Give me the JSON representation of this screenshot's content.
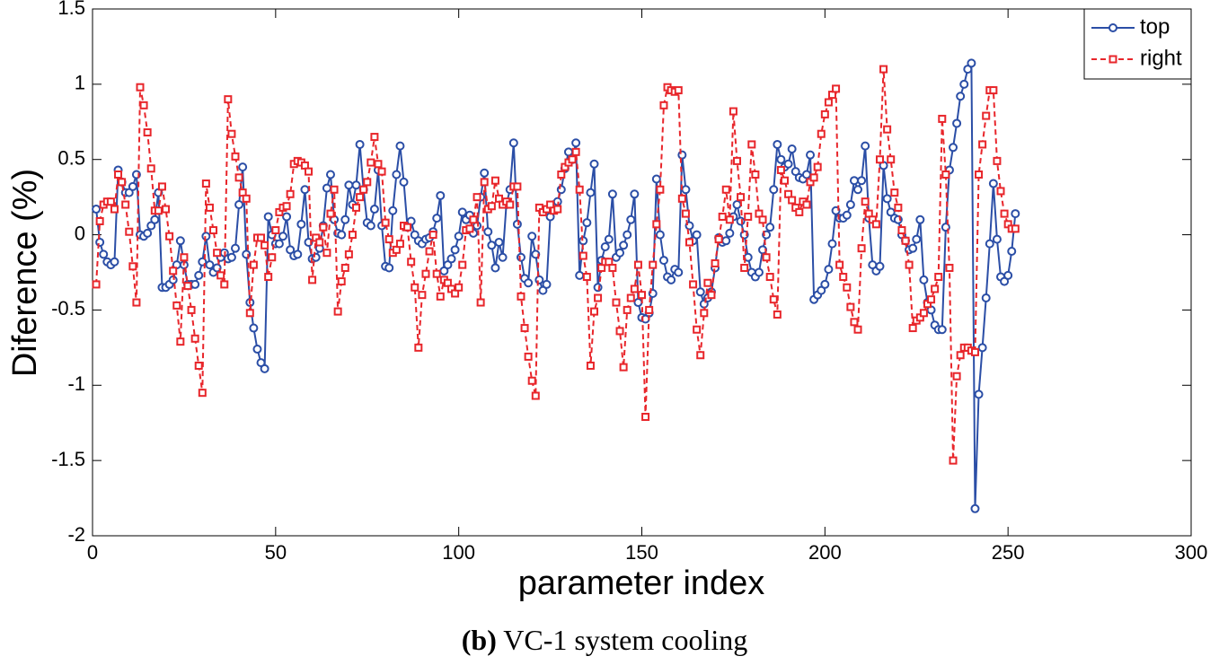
{
  "chart_data": {
    "type": "line",
    "xlabel": "parameter index",
    "ylabel": "Diference (%)",
    "caption": {
      "label": "(b)",
      "text": "VC-1 system cooling"
    },
    "xlim": [
      0,
      300
    ],
    "xticks": [
      0,
      50,
      100,
      150,
      200,
      250,
      300
    ],
    "ylim": [
      -2,
      1.5
    ],
    "yticks": [
      -2,
      -1.5,
      -1,
      -0.5,
      0,
      0.5,
      1,
      1.5
    ],
    "grid": false,
    "legend": "upper right",
    "series": [
      {
        "name": "top",
        "color": "#2b4ea6",
        "marker": "circle",
        "dash": "solid",
        "values": [
          0.17,
          -0.05,
          -0.13,
          -0.18,
          -0.2,
          -0.18,
          0.43,
          0.35,
          0.28,
          0.28,
          0.32,
          0.4,
          0.0,
          -0.01,
          0.01,
          0.06,
          0.1,
          0.28,
          -0.35,
          -0.35,
          -0.33,
          -0.3,
          -0.2,
          -0.04,
          -0.2,
          -0.33,
          -0.33,
          -0.33,
          -0.27,
          -0.18,
          -0.01,
          -0.2,
          -0.25,
          -0.22,
          -0.15,
          -0.12,
          -0.16,
          -0.15,
          -0.09,
          0.2,
          0.45,
          -0.13,
          -0.45,
          -0.62,
          -0.76,
          -0.85,
          -0.89,
          0.12,
          0.0,
          -0.06,
          -0.06,
          -0.01,
          0.12,
          -0.1,
          -0.14,
          -0.13,
          0.07,
          0.3,
          -0.05,
          -0.16,
          -0.15,
          -0.09,
          0.06,
          0.31,
          0.4,
          0.1,
          0.01,
          0.0,
          0.1,
          0.33,
          0.2,
          0.33,
          0.6,
          0.3,
          0.08,
          0.06,
          0.17,
          0.43,
          0.06,
          -0.21,
          -0.22,
          0.16,
          0.4,
          0.59,
          0.35,
          0.05,
          0.09,
          0.0,
          -0.04,
          -0.06,
          -0.03,
          -0.02,
          0.02,
          0.11,
          0.26,
          -0.24,
          -0.2,
          -0.16,
          -0.1,
          -0.01,
          0.15,
          0.1,
          0.13,
          0.01,
          0.06,
          0.25,
          0.41,
          0.02,
          -0.07,
          -0.22,
          -0.05,
          -0.15,
          0.2,
          0.3,
          0.61,
          0.07,
          -0.15,
          -0.29,
          -0.32,
          -0.01,
          -0.13,
          -0.3,
          -0.37,
          -0.33,
          0.12,
          0.2,
          0.22,
          0.3,
          0.44,
          0.55,
          0.5,
          0.61,
          -0.27,
          -0.04,
          0.08,
          0.28,
          0.47,
          -0.35,
          -0.17,
          -0.08,
          -0.03,
          0.27,
          -0.15,
          -0.12,
          -0.07,
          0.0,
          0.1,
          0.27,
          -0.45,
          -0.55,
          -0.56,
          -0.52,
          -0.39,
          0.37,
          0.0,
          -0.17,
          -0.28,
          -0.3,
          -0.23,
          -0.25,
          0.53,
          0.3,
          0.06,
          -0.04,
          0.0,
          -0.38,
          -0.46,
          -0.42,
          -0.38,
          -0.22,
          -0.02,
          -0.05,
          -0.04,
          0.01,
          0.12,
          0.2,
          0.09,
          0.0,
          -0.15,
          -0.25,
          -0.28,
          -0.25,
          -0.1,
          0.0,
          0.05,
          0.3,
          0.6,
          0.5,
          0.45,
          0.47,
          0.57,
          0.42,
          0.38,
          0.37,
          0.4,
          0.53,
          -0.43,
          -0.4,
          -0.37,
          -0.33,
          -0.23,
          -0.06,
          0.16,
          0.11,
          0.11,
          0.13,
          0.2,
          0.36,
          0.3,
          0.36,
          0.59,
          0.11,
          -0.2,
          -0.24,
          -0.21,
          0.46,
          0.24,
          0.15,
          0.11,
          0.1,
          0.0,
          -0.04,
          -0.1,
          -0.09,
          -0.03,
          0.1,
          -0.3,
          -0.45,
          -0.5,
          -0.6,
          -0.63,
          -0.63,
          0.05,
          0.43,
          0.58,
          0.74,
          0.92,
          1.0,
          1.1,
          1.14,
          -1.82,
          -1.06,
          -0.75,
          -0.42,
          -0.06,
          0.34,
          -0.03,
          -0.28,
          -0.31,
          -0.27,
          -0.11,
          0.14
        ]
      },
      {
        "name": "right",
        "color": "#e8262b",
        "marker": "square",
        "dash": "dashed",
        "values": [
          -0.33,
          0.09,
          0.2,
          0.22,
          0.22,
          0.17,
          0.4,
          0.35,
          0.2,
          0.02,
          -0.21,
          -0.45,
          0.98,
          0.86,
          0.68,
          0.44,
          0.16,
          0.16,
          0.32,
          0.17,
          -0.01,
          -0.24,
          -0.47,
          -0.71,
          -0.15,
          -0.34,
          -0.5,
          -0.69,
          -0.87,
          -1.05,
          0.34,
          0.18,
          0.03,
          -0.12,
          -0.27,
          -0.33,
          0.9,
          0.67,
          0.52,
          0.38,
          0.28,
          0.24,
          -0.52,
          -0.2,
          -0.02,
          -0.02,
          -0.07,
          -0.28,
          -0.15,
          0.03,
          0.15,
          0.18,
          0.19,
          0.27,
          0.47,
          0.49,
          0.48,
          0.46,
          0.42,
          -0.3,
          -0.02,
          -0.05,
          0.05,
          -0.12,
          0.14,
          0.3,
          -0.51,
          -0.31,
          -0.22,
          -0.13,
          0.0,
          0.18,
          0.25,
          0.3,
          0.35,
          0.48,
          0.65,
          0.47,
          0.42,
          0.08,
          -0.03,
          -0.12,
          -0.1,
          -0.06,
          0.06,
          0.05,
          -0.18,
          -0.35,
          -0.75,
          -0.4,
          -0.26,
          -0.11,
          0.0,
          -0.26,
          -0.41,
          -0.3,
          -0.32,
          -0.36,
          -0.39,
          -0.35,
          -0.2,
          0.03,
          0.04,
          0.1,
          0.25,
          -0.45,
          0.35,
          0.17,
          0.19,
          0.36,
          0.24,
          0.2,
          0.22,
          0.2,
          0.32,
          0.32,
          -0.41,
          -0.62,
          -0.81,
          -0.97,
          -1.07,
          0.18,
          0.15,
          0.17,
          0.2,
          0.16,
          0.17,
          0.4,
          0.45,
          0.48,
          0.5,
          0.55,
          0.3,
          -0.14,
          -0.28,
          -0.87,
          -0.51,
          -0.42,
          -0.22,
          -0.18,
          -0.18,
          -0.22,
          -0.45,
          -0.64,
          -0.88,
          -0.5,
          -0.42,
          -0.36,
          -0.2,
          -0.4,
          -1.21,
          -0.5,
          -0.2,
          0.07,
          0.3,
          0.86,
          0.98,
          0.96,
          0.95,
          0.96,
          0.24,
          0.14,
          -0.05,
          -0.33,
          -0.63,
          -0.8,
          -0.52,
          -0.32,
          -0.4,
          -0.19,
          -0.03,
          0.12,
          0.3,
          0.1,
          0.82,
          0.49,
          0.25,
          -0.22,
          0.12,
          0.6,
          0.4,
          0.14,
          0.1,
          -0.15,
          -0.28,
          -0.43,
          -0.53,
          0.43,
          0.36,
          0.27,
          0.23,
          0.18,
          0.15,
          0.22,
          0.2,
          0.35,
          0.38,
          0.45,
          0.67,
          0.8,
          0.88,
          0.93,
          0.97,
          -0.2,
          -0.28,
          -0.35,
          -0.48,
          -0.58,
          -0.63,
          -0.09,
          0.22,
          0.14,
          0.1,
          0.07,
          0.5,
          1.1,
          0.7,
          0.5,
          0.28,
          0.18,
          0.03,
          -0.04,
          -0.2,
          -0.62,
          -0.57,
          -0.55,
          -0.52,
          -0.46,
          -0.43,
          -0.36,
          -0.28,
          0.77,
          0.4,
          -0.22,
          -1.5,
          -0.94,
          -0.8,
          -0.75,
          -0.75,
          -0.77,
          -0.78,
          0.4,
          0.6,
          0.79,
          0.96,
          0.96,
          0.49,
          0.29,
          0.14,
          0.07,
          0.04,
          0.04
        ]
      }
    ]
  }
}
